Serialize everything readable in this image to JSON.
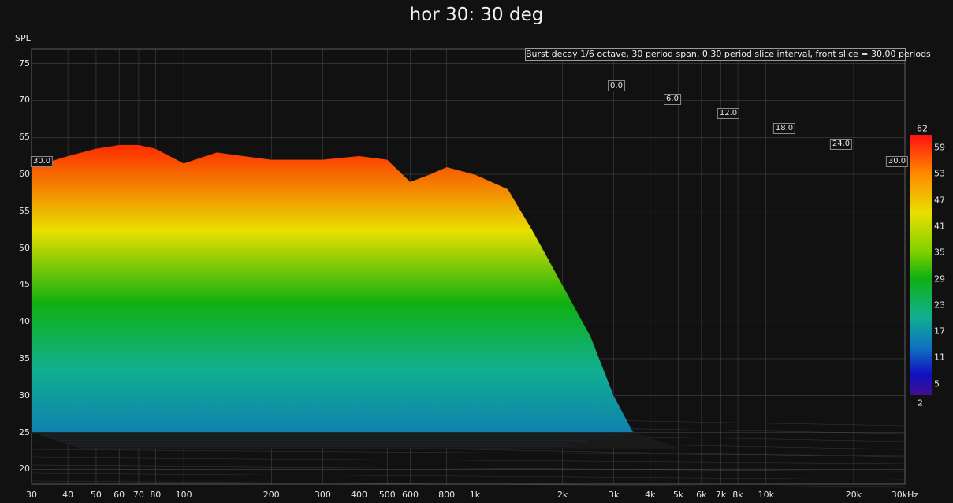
{
  "title": "hor 30: 30 deg",
  "annotation": "Burst decay 1/6 octave, 30 period span, 0.30 period slice interval,  front slice = 30.00 periods",
  "chart_data": {
    "type": "area",
    "chart_style": "3D waterfall burst decay",
    "ylabel": "SPL",
    "yticks": [
      "75",
      "70",
      "65",
      "60",
      "55",
      "50",
      "45",
      "40",
      "35",
      "30",
      "25",
      "20"
    ],
    "ylim": [
      18,
      77
    ],
    "xlabel_unit": "kHz",
    "xscale": "log",
    "xlim": [
      30,
      30000
    ],
    "xticks": [
      {
        "v": 30,
        "label": "30"
      },
      {
        "v": 40,
        "label": "40"
      },
      {
        "v": 50,
        "label": "50"
      },
      {
        "v": 60,
        "label": "60"
      },
      {
        "v": 70,
        "label": "70"
      },
      {
        "v": 80,
        "label": "80"
      },
      {
        "v": 100,
        "label": "100"
      },
      {
        "v": 200,
        "label": "200"
      },
      {
        "v": 300,
        "label": "300"
      },
      {
        "v": 400,
        "label": "400"
      },
      {
        "v": 500,
        "label": "500"
      },
      {
        "v": 600,
        "label": "600"
      },
      {
        "v": 800,
        "label": "800"
      },
      {
        "v": 1000,
        "label": "1k"
      },
      {
        "v": 2000,
        "label": "2k"
      },
      {
        "v": 3000,
        "label": "3k"
      },
      {
        "v": 4000,
        "label": "4k"
      },
      {
        "v": 5000,
        "label": "5k"
      },
      {
        "v": 6000,
        "label": "6k"
      },
      {
        "v": 7000,
        "label": "7k"
      },
      {
        "v": 8000,
        "label": "8k"
      },
      {
        "v": 10000,
        "label": "10k"
      },
      {
        "v": 20000,
        "label": "20k"
      },
      {
        "v": 30000,
        "label": "30kHz"
      }
    ],
    "slice_labels": [
      "0.0",
      "6.0",
      "12.0",
      "18.0",
      "24.0",
      "30.0"
    ],
    "front_slice_label": "30.0",
    "front_slice_response": [
      {
        "f": 30,
        "spl": 61
      },
      {
        "f": 40,
        "spl": 62.5
      },
      {
        "f": 50,
        "spl": 63.5
      },
      {
        "f": 60,
        "spl": 64
      },
      {
        "f": 70,
        "spl": 64
      },
      {
        "f": 80,
        "spl": 63.5
      },
      {
        "f": 100,
        "spl": 61.5
      },
      {
        "f": 130,
        "spl": 63
      },
      {
        "f": 160,
        "spl": 62.5
      },
      {
        "f": 200,
        "spl": 62
      },
      {
        "f": 250,
        "spl": 62
      },
      {
        "f": 300,
        "spl": 62
      },
      {
        "f": 400,
        "spl": 62.5
      },
      {
        "f": 500,
        "spl": 62
      },
      {
        "f": 600,
        "spl": 59
      },
      {
        "f": 700,
        "spl": 60
      },
      {
        "f": 800,
        "spl": 61
      },
      {
        "f": 1000,
        "spl": 60
      },
      {
        "f": 1300,
        "spl": 58
      },
      {
        "f": 1600,
        "spl": 52
      },
      {
        "f": 2000,
        "spl": 45
      },
      {
        "f": 2500,
        "spl": 38
      },
      {
        "f": 3000,
        "spl": 30
      },
      {
        "f": 3500,
        "spl": 25
      }
    ],
    "colorbar": {
      "max_label": "62",
      "min_label": "2",
      "ticks": [
        "59",
        "53",
        "47",
        "41",
        "35",
        "29",
        "23",
        "17",
        "11",
        "5"
      ]
    },
    "colors": {
      "background": "#111111",
      "grid": "#6a6a6a",
      "surface_top": "#ff2a00",
      "surface_mid": "#e8e000",
      "surface_green": "#10b010",
      "surface_teal": "#10b090",
      "surface_bottom": "#1080b0"
    }
  }
}
